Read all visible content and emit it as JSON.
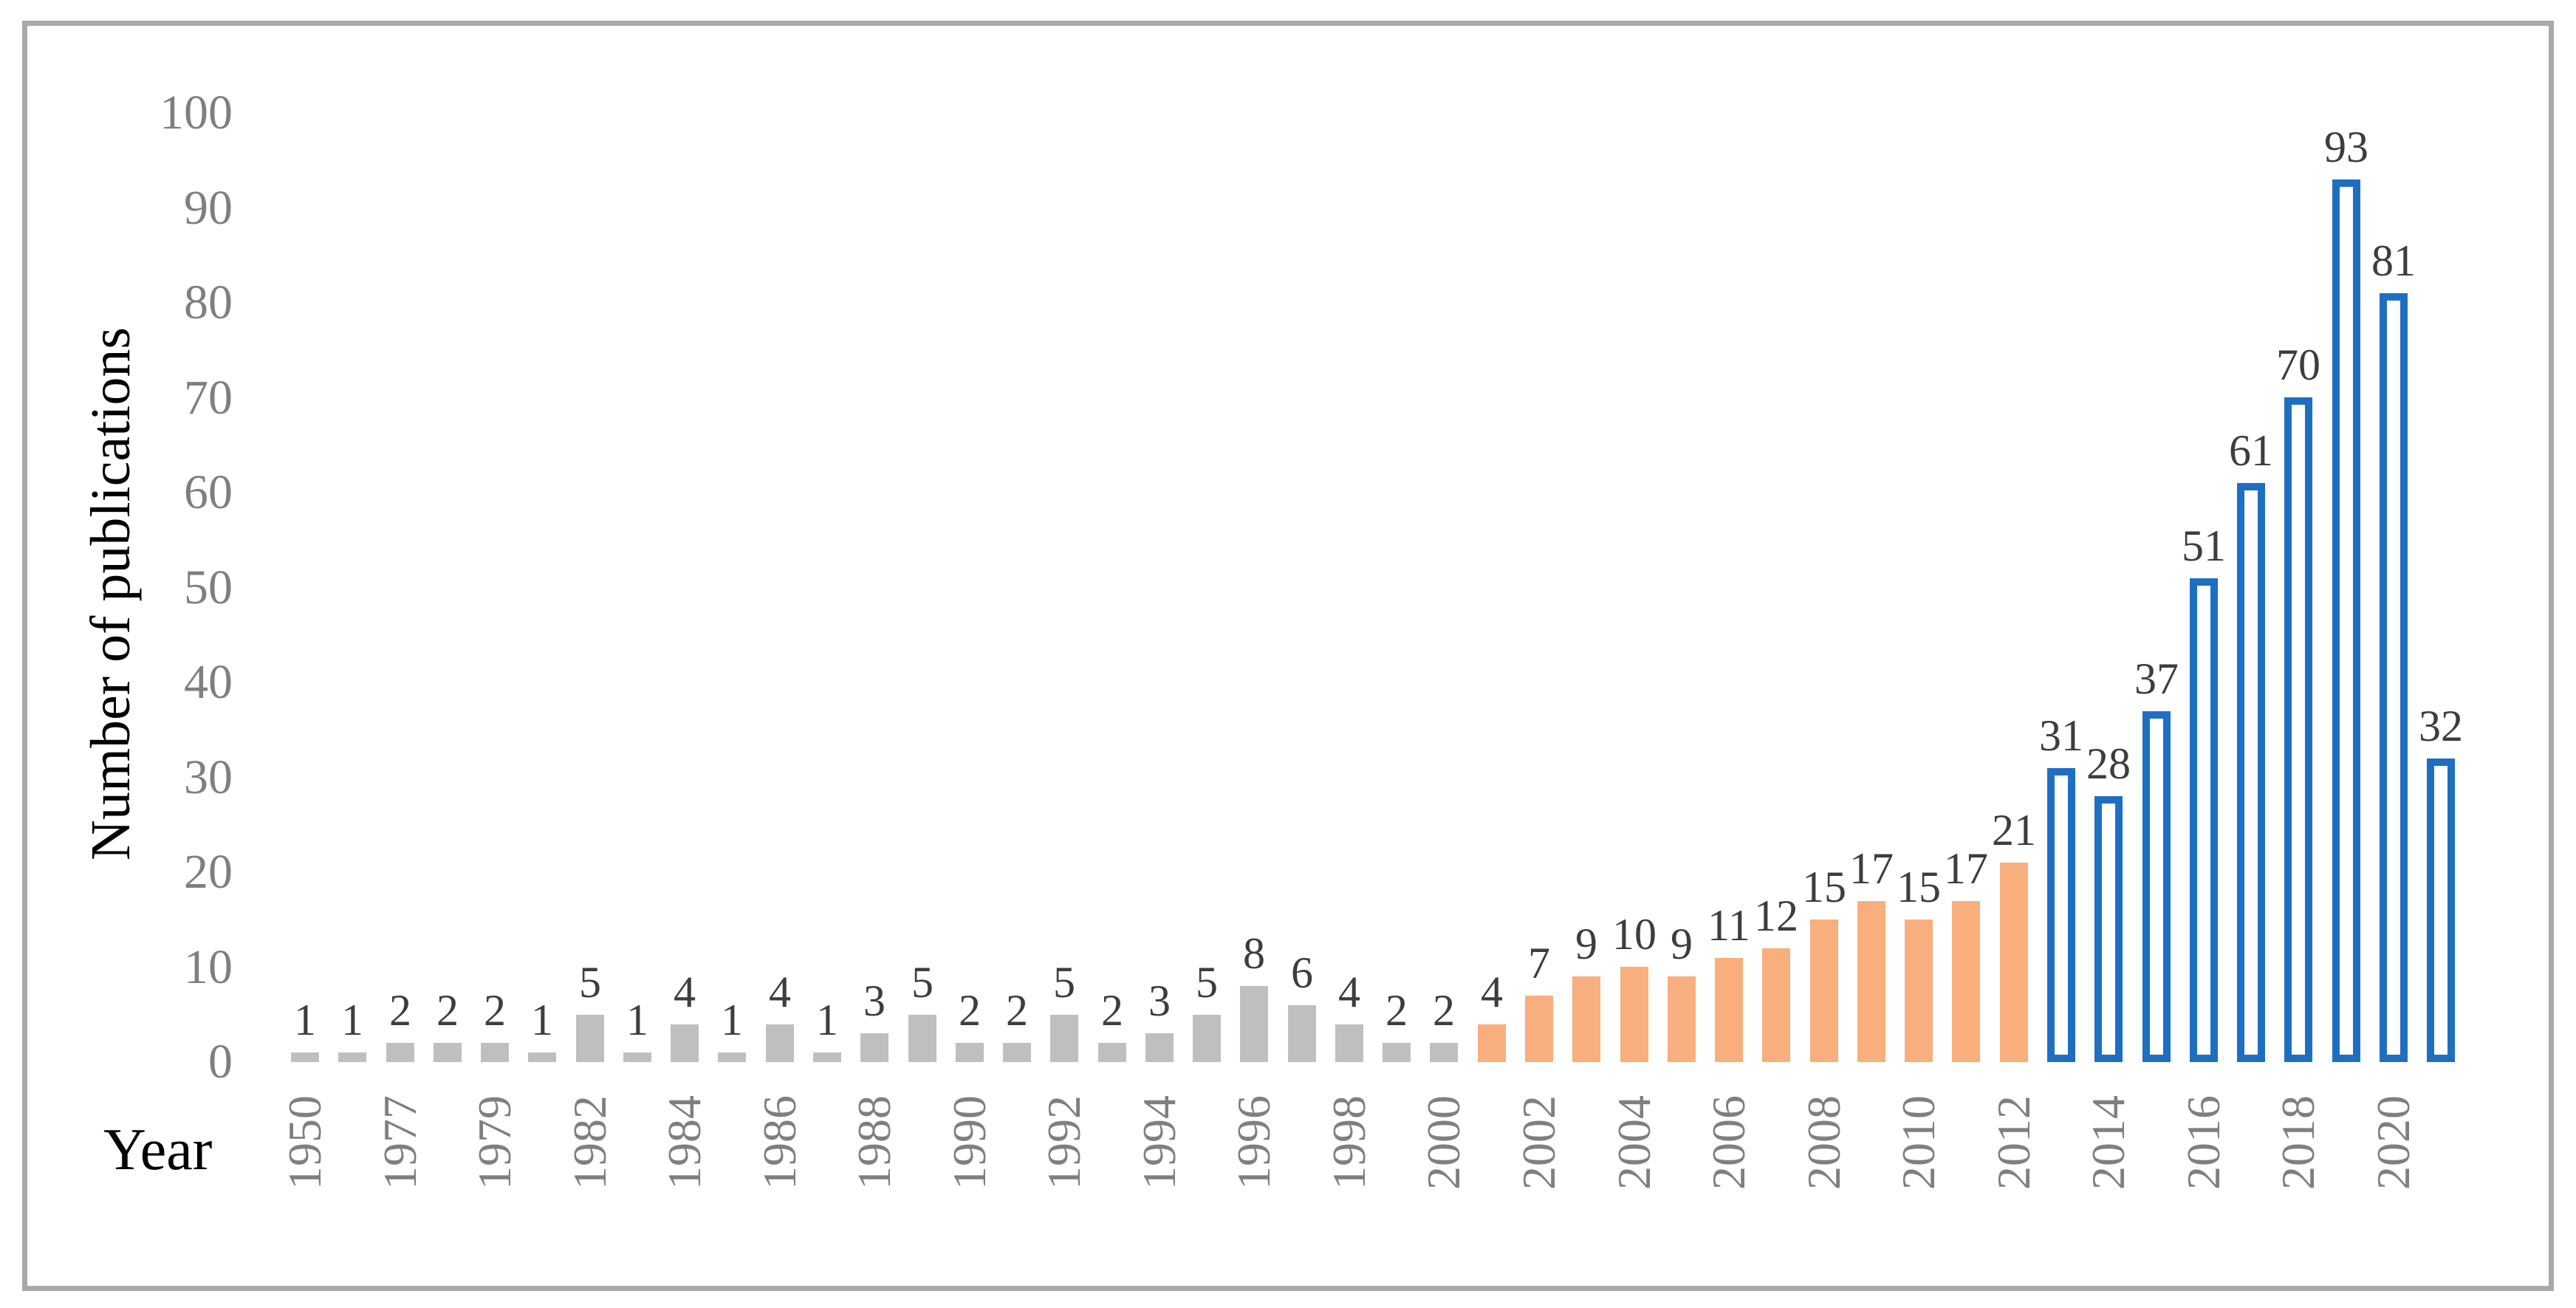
{
  "figure": {
    "y_axis": {
      "title": "Number of publications",
      "ticks": [
        "0",
        "10",
        "20",
        "30",
        "40",
        "50",
        "60",
        "70",
        "80",
        "90",
        "100"
      ]
    },
    "x_axis": {
      "title": "Year"
    },
    "colors": {
      "bar_gray": "#BFBFBF",
      "bar_orange": "#F9AE7E",
      "bar_blue_stroke": "#1E6FC2",
      "bar_blue_fill": "#FFFFFF",
      "axis_text": "#7F7F7F",
      "value_text": "#3D3D3D",
      "title_text": "#000000",
      "frame_border": "#A9A9A9"
    }
  },
  "chart_data": {
    "type": "bar",
    "title": "",
    "xlabel": "Year",
    "ylabel": "Number of publications",
    "ylim": [
      0,
      100
    ],
    "y_ticks": [
      0,
      10,
      20,
      30,
      40,
      50,
      60,
      70,
      80,
      90,
      100
    ],
    "grid": false,
    "legend": "none",
    "data_labels_shown": true,
    "categories": [
      "1950",
      "",
      "1977",
      "",
      "1979",
      "",
      "1982",
      "",
      "1984",
      "",
      "1986",
      "",
      "1988",
      "",
      "1990",
      "",
      "1992",
      "",
      "1994",
      "",
      "1996",
      "",
      "1998",
      "",
      "2000",
      "",
      "2002",
      "",
      "2004",
      "",
      "2006",
      "",
      "2008",
      "",
      "2010",
      "",
      "2012",
      "",
      "2014",
      "",
      "2016",
      "",
      "2018",
      "",
      "2020",
      ""
    ],
    "values": [
      1,
      1,
      2,
      2,
      2,
      1,
      5,
      1,
      4,
      1,
      4,
      1,
      3,
      5,
      2,
      2,
      5,
      2,
      3,
      5,
      8,
      6,
      4,
      2,
      2,
      4,
      7,
      9,
      10,
      9,
      11,
      12,
      15,
      17,
      15,
      17,
      21,
      31,
      28,
      37,
      51,
      61,
      70,
      93,
      81,
      32
    ],
    "segments": [
      {
        "from_index": 0,
        "to_index": 24,
        "style": "gray",
        "description": "solid gray bars"
      },
      {
        "from_index": 25,
        "to_index": 36,
        "style": "orange",
        "description": "solid orange bars"
      },
      {
        "from_index": 37,
        "to_index": 45,
        "style": "blue",
        "description": "blue outlined hollow bars"
      }
    ]
  }
}
